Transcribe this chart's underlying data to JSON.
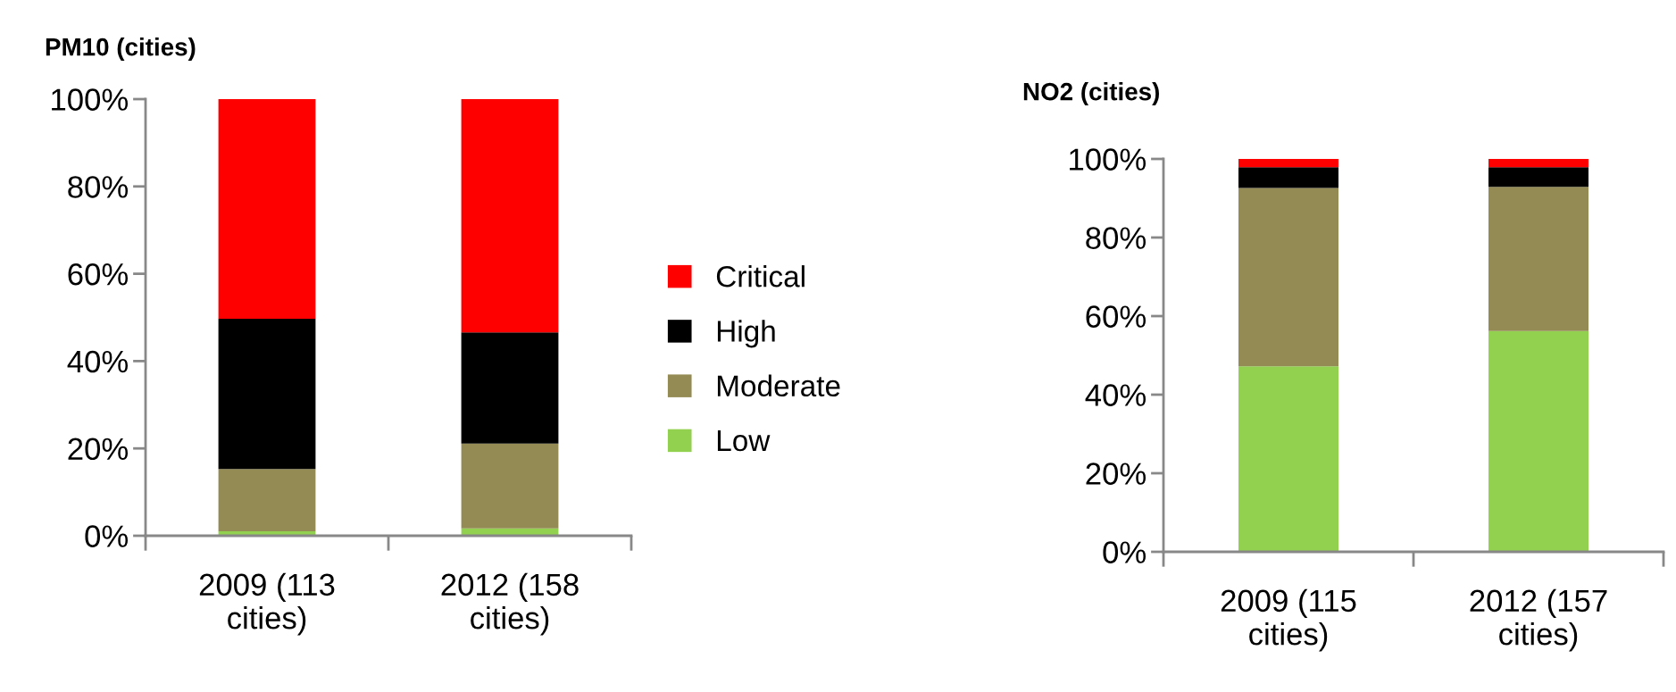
{
  "chart_data": [
    {
      "type": "bar",
      "title": "PM10 (cities)",
      "stacked": true,
      "categories": [
        "2009 (113 cities)",
        "2012 (158 cities)"
      ],
      "series": [
        {
          "name": "Low",
          "color": "#92d050",
          "values": [
            1.0,
            1.7
          ]
        },
        {
          "name": "Moderate",
          "color": "#948a54",
          "values": [
            14.3,
            19.4
          ]
        },
        {
          "name": "High",
          "color": "#000000",
          "values": [
            34.4,
            25.5
          ]
        },
        {
          "name": "Critical",
          "color": "#ff0000",
          "values": [
            50.3,
            53.4
          ]
        }
      ],
      "ylim": [
        0,
        100
      ],
      "yticks": [
        {
          "value": 0,
          "label": "0%"
        },
        {
          "value": 20,
          "label": "20%"
        },
        {
          "value": 40,
          "label": "40%"
        },
        {
          "value": 60,
          "label": "60%"
        },
        {
          "value": 80,
          "label": "80%"
        },
        {
          "value": 100,
          "label": "100%"
        }
      ],
      "grid": false,
      "legend": "right"
    },
    {
      "type": "bar",
      "title": "NO2 (cities)",
      "stacked": true,
      "categories": [
        "2009 (115 cities)",
        "2012 (157 cities)"
      ],
      "series": [
        {
          "color": "#92d050",
          "values": [
            47.2,
            56.2
          ]
        },
        {
          "color": "#948a54",
          "values": [
            45.4,
            36.7
          ]
        },
        {
          "color": "#000000",
          "values": [
            5.3,
            5.0
          ]
        },
        {
          "color": "#ff0000",
          "values": [
            2.1,
            2.1
          ]
        }
      ],
      "ylim": [
        0,
        100
      ],
      "yticks": [
        {
          "value": 0,
          "label": "0%"
        },
        {
          "value": 20,
          "label": "20%"
        },
        {
          "value": 40,
          "label": "40%"
        },
        {
          "value": 60,
          "label": "60%"
        },
        {
          "value": 80,
          "label": "80%"
        },
        {
          "value": 100,
          "label": "100%"
        }
      ],
      "grid": false,
      "legend": false
    }
  ]
}
